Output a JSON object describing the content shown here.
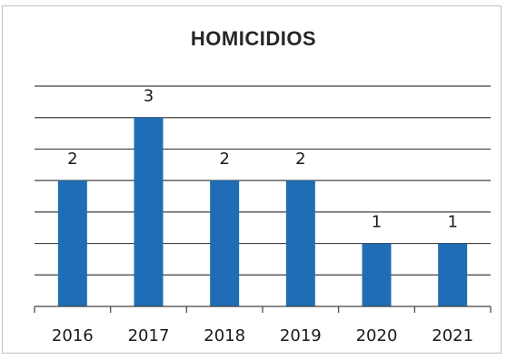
{
  "chart_data": {
    "type": "bar",
    "title": "HOMICIDIOS",
    "categories": [
      "2016",
      "2017",
      "2018",
      "2019",
      "2020",
      "2021"
    ],
    "values": [
      2,
      3,
      2,
      2,
      1,
      1
    ],
    "data_labels": [
      "2",
      "3",
      "2",
      "2",
      "1",
      "1"
    ],
    "ylim": [
      0,
      3.5
    ],
    "gridlines": true,
    "grid_step": 0.5,
    "bar_color": "#1f6db5",
    "gridline_color": "#404040",
    "y_axis_labels_shown": false,
    "legend": "none"
  }
}
